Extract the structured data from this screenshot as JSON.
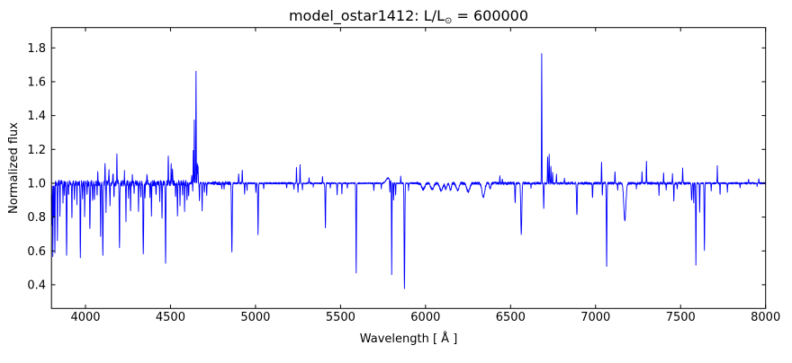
{
  "chart_data": {
    "type": "line",
    "title": "model_ostar1412: L/L⊙ = 600000",
    "title_prefix": "model_ostar1412: L/L",
    "title_sub": "⊙",
    "title_suffix": " = 600000",
    "xlabel": "Wavelength [ Å ]",
    "ylabel": "Normalized flux",
    "xlim": [
      3800,
      8000
    ],
    "ylim": [
      0.26,
      1.92
    ],
    "xticks": [
      4000,
      4500,
      5000,
      5500,
      6000,
      6500,
      7000,
      7500,
      8000
    ],
    "yticks": [
      0.4,
      0.6,
      0.8,
      1.0,
      1.2,
      1.4,
      1.6,
      1.8
    ],
    "grid": false,
    "legend": false,
    "line_color": "#0000ff",
    "axis_color": "#000000",
    "background": "#ffffff",
    "continuum": 1.0,
    "lines_format": "[wavelength_angstrom, extremum_flux, optional_sigma_angstrom]",
    "lines": [
      [
        3802,
        0.75
      ],
      [
        3808,
        0.58
      ],
      [
        3814,
        0.8
      ],
      [
        3820,
        0.57
      ],
      [
        3835,
        0.66
      ],
      [
        3850,
        0.82
      ],
      [
        3868,
        0.88
      ],
      [
        3877,
        0.93
      ],
      [
        3889,
        0.56,
        1.6
      ],
      [
        3900,
        0.92
      ],
      [
        3920,
        0.78
      ],
      [
        3935,
        0.9
      ],
      [
        3950,
        0.88
      ],
      [
        3970,
        0.55,
        1.6
      ],
      [
        3983,
        0.92
      ],
      [
        3995,
        0.8
      ],
      [
        4009,
        0.92
      ],
      [
        4026,
        0.72,
        1.6
      ],
      [
        4042,
        0.9
      ],
      [
        4053,
        0.9
      ],
      [
        4069,
        0.92
      ],
      [
        4072,
        1.09
      ],
      [
        4089,
        0.7
      ],
      [
        4102,
        0.58,
        2
      ],
      [
        4115,
        1.12
      ],
      [
        4121,
        0.83
      ],
      [
        4138,
        1.09
      ],
      [
        4144,
        0.87
      ],
      [
        4162,
        1.06
      ],
      [
        4168,
        0.92
      ],
      [
        4185,
        1.17
      ],
      [
        4200,
        0.62,
        1.6
      ],
      [
        4229,
        1.07
      ],
      [
        4238,
        0.78
      ],
      [
        4253,
        0.92
      ],
      [
        4265,
        0.82
      ],
      [
        4276,
        1.05
      ],
      [
        4286,
        0.94
      ],
      [
        4312,
        0.84
      ],
      [
        4326,
        0.92
      ],
      [
        4340,
        0.57,
        2
      ],
      [
        4350,
        0.9
      ],
      [
        4362,
        1.06
      ],
      [
        4379,
        0.93
      ],
      [
        4388,
        0.82
      ],
      [
        4415,
        0.94
      ],
      [
        4437,
        0.9
      ],
      [
        4450,
        0.78
      ],
      [
        4471,
        0.52,
        1.6
      ],
      [
        4487,
        1.15
      ],
      [
        4504,
        1.1
      ],
      [
        4512,
        1.08
      ],
      [
        4530,
        0.93
      ],
      [
        4541,
        0.8
      ],
      [
        4556,
        0.87
      ],
      [
        4571,
        0.93
      ],
      [
        4583,
        0.85
      ],
      [
        4597,
        0.9
      ],
      [
        4607,
        0.92
      ],
      [
        4625,
        1.05
      ],
      [
        4631,
        0.95
      ],
      [
        4634,
        1.2
      ],
      [
        4640,
        1.38,
        1.0
      ],
      [
        4650,
        1.66,
        1.1
      ],
      [
        4658,
        1.12
      ],
      [
        4662,
        1.1
      ],
      [
        4670,
        0.9
      ],
      [
        4686,
        0.84
      ],
      [
        4700,
        0.95
      ],
      [
        4713,
        0.93
      ],
      [
        4802,
        0.97
      ],
      [
        4815,
        0.97
      ],
      [
        4861,
        0.59,
        2.2
      ],
      [
        4901,
        1.06
      ],
      [
        4922,
        1.08
      ],
      [
        4936,
        0.94
      ],
      [
        4950,
        0.96
      ],
      [
        5002,
        0.95
      ],
      [
        5015,
        0.7,
        1.8
      ],
      [
        5048,
        0.97
      ],
      [
        5183,
        0.97
      ],
      [
        5226,
        0.96
      ],
      [
        5241,
        1.09
      ],
      [
        5250,
        0.95
      ],
      [
        5262,
        1.11
      ],
      [
        5276,
        0.96
      ],
      [
        5315,
        1.03
      ],
      [
        5340,
        0.98
      ],
      [
        5394,
        1.04
      ],
      [
        5411,
        0.74,
        1.8
      ],
      [
        5440,
        0.97
      ],
      [
        5480,
        0.93
      ],
      [
        5508,
        0.94
      ],
      [
        5540,
        0.97
      ],
      [
        5592,
        0.47,
        1.6
      ],
      [
        5696,
        0.96
      ],
      [
        5740,
        0.97
      ],
      [
        5780,
        1.03,
        12
      ],
      [
        5790,
        0.93
      ],
      [
        5801,
        0.45,
        1.4
      ],
      [
        5812,
        0.9
      ],
      [
        5824,
        0.93
      ],
      [
        5854,
        1.04
      ],
      [
        5876,
        0.38,
        2
      ],
      [
        5900,
        0.96
      ],
      [
        5986,
        0.965,
        9
      ],
      [
        6039,
        0.963,
        9
      ],
      [
        6092,
        0.958,
        9
      ],
      [
        6120,
        0.965,
        5
      ],
      [
        6147,
        0.96,
        5
      ],
      [
        6188,
        0.958,
        8
      ],
      [
        6251,
        0.95,
        9
      ],
      [
        6340,
        0.92,
        8
      ],
      [
        6380,
        0.97,
        4
      ],
      [
        6437,
        1.04
      ],
      [
        6452,
        1.03
      ],
      [
        6527,
        0.88,
        1.6
      ],
      [
        6563,
        0.7,
        3
      ],
      [
        6620,
        0.97
      ],
      [
        6683,
        1.77,
        1.1
      ],
      [
        6695,
        0.85,
        1.6
      ],
      [
        6718,
        1.16
      ],
      [
        6727,
        1.17
      ],
      [
        6737,
        1.1
      ],
      [
        6747,
        1.07
      ],
      [
        6770,
        1.05
      ],
      [
        6817,
        1.03
      ],
      [
        6890,
        0.81,
        2
      ],
      [
        6982,
        0.91,
        1.6
      ],
      [
        7035,
        1.12
      ],
      [
        7040,
        0.93
      ],
      [
        7065,
        0.51,
        1.8
      ],
      [
        7114,
        1.07
      ],
      [
        7130,
        0.96
      ],
      [
        7172,
        0.78,
        6
      ],
      [
        7240,
        0.97
      ],
      [
        7273,
        1.07
      ],
      [
        7299,
        1.13
      ],
      [
        7373,
        0.93
      ],
      [
        7400,
        1.06
      ],
      [
        7415,
        0.96
      ],
      [
        7452,
        1.05
      ],
      [
        7460,
        0.89
      ],
      [
        7480,
        0.96
      ],
      [
        7512,
        1.09
      ],
      [
        7565,
        0.9,
        2
      ],
      [
        7577,
        0.88
      ],
      [
        7590,
        0.52,
        1.6
      ],
      [
        7612,
        0.83
      ],
      [
        7640,
        0.6,
        1.6
      ],
      [
        7680,
        0.95
      ],
      [
        7716,
        1.1
      ],
      [
        7732,
        0.93
      ],
      [
        7775,
        0.95
      ],
      [
        7850,
        0.97
      ],
      [
        7900,
        1.02
      ],
      [
        7950,
        0.98
      ],
      [
        7960,
        1.03
      ]
    ],
    "noise_regions": [
      {
        "from": 3800,
        "to": 4600,
        "amp": 0.018
      },
      {
        "from": 4600,
        "to": 4750,
        "amp": 0.006
      },
      {
        "from": 4750,
        "to": 4870,
        "amp": 0.01
      },
      {
        "from": 4870,
        "to": 5350,
        "amp": 0.005
      },
      {
        "from": 5350,
        "to": 5950,
        "amp": 0.004
      },
      {
        "from": 5950,
        "to": 6520,
        "amp": 0.008
      },
      {
        "from": 6520,
        "to": 6900,
        "amp": 0.007
      },
      {
        "from": 6900,
        "to": 7550,
        "amp": 0.007
      },
      {
        "from": 7550,
        "to": 8000,
        "amp": 0.005
      }
    ]
  }
}
